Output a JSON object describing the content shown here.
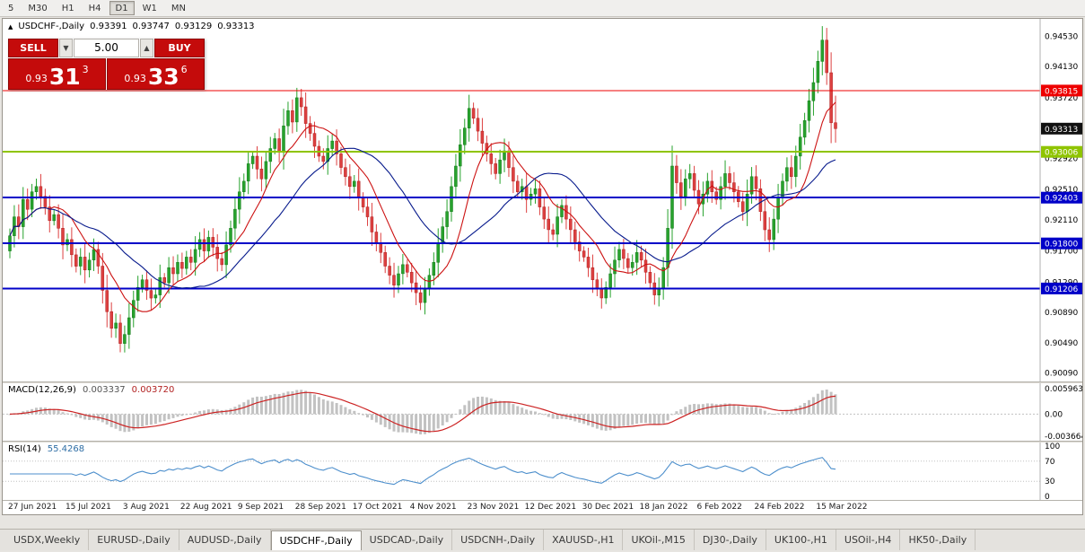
{
  "toolbar": {
    "timeframes": [
      {
        "label": "5",
        "active": false
      },
      {
        "label": "M30",
        "active": false
      },
      {
        "label": "H1",
        "active": false
      },
      {
        "label": "H4",
        "active": false
      },
      {
        "label": "D1",
        "active": true
      },
      {
        "label": "W1",
        "active": false
      },
      {
        "label": "MN",
        "active": false
      }
    ]
  },
  "chart": {
    "symbol_header": {
      "arrow": "▲",
      "title": "USDCHF-,Daily",
      "o": "0.93391",
      "h": "0.93747",
      "l": "0.93129",
      "c": "0.93313"
    },
    "trade_panel": {
      "sell_label": "SELL",
      "buy_label": "BUY",
      "volume": "5.00",
      "sell_price": {
        "prefix": "0.93",
        "big": "31",
        "sup": "3"
      },
      "buy_price": {
        "prefix": "0.93",
        "big": "33",
        "sup": "6"
      }
    },
    "price_axis": {
      "ticks": [
        "0.94530",
        "0.94130",
        "0.93720",
        "0.93310",
        "0.92920",
        "0.92510",
        "0.92110",
        "0.91700",
        "0.91290",
        "0.90890",
        "0.90490",
        "0.90090"
      ],
      "badges": [
        {
          "value": "0.93815",
          "color": "#ee0000"
        },
        {
          "value": "0.93313",
          "color": "#111111"
        },
        {
          "value": "0.93006",
          "color": "#8fc400"
        },
        {
          "value": "0.92403",
          "color": "#0000c8"
        },
        {
          "value": "0.91800",
          "color": "#0000c8"
        },
        {
          "value": "0.91206",
          "color": "#0000c8"
        }
      ]
    },
    "hlines": [
      {
        "price": 0.93815,
        "color": "#ee0000",
        "width": 1
      },
      {
        "price": 0.93006,
        "color": "#8fc400",
        "width": 2
      },
      {
        "price": 0.92403,
        "color": "#0000c8",
        "width": 2
      },
      {
        "price": 0.918,
        "color": "#0000c8",
        "width": 2
      },
      {
        "price": 0.91206,
        "color": "#0000c8",
        "width": 2
      }
    ],
    "current_price": "0.93313"
  },
  "macd": {
    "header_name": "MACD(12,26,9)",
    "value_main": "0.003337",
    "value_signal": "0.003720",
    "axis": [
      "0.005963",
      "0.00",
      "-0.003664"
    ]
  },
  "rsi": {
    "header_name": "RSI(14)",
    "value": "55.4268",
    "axis": [
      "100",
      "70",
      "30",
      "0"
    ],
    "levels": [
      70,
      30
    ]
  },
  "dates": {
    "labels": [
      "27 Jun 2021",
      "15 Jul 2021",
      "3 Aug 2021",
      "22 Aug 2021",
      "9 Sep 2021",
      "28 Sep 2021",
      "17 Oct 2021",
      "4 Nov 2021",
      "23 Nov 2021",
      "12 Dec 2021",
      "30 Dec 2021",
      "18 Jan 2022",
      "6 Feb 2022",
      "24 Feb 2022",
      "15 Mar 2022"
    ],
    "indices": [
      0,
      13,
      26,
      39,
      52,
      65,
      78,
      91,
      104,
      117,
      130,
      143,
      156,
      169,
      183
    ]
  },
  "tabs": [
    {
      "label": "USDX,Weekly",
      "active": false
    },
    {
      "label": "EURUSD-,Daily",
      "active": false
    },
    {
      "label": "AUDUSD-,Daily",
      "active": false
    },
    {
      "label": "USDCHF-,Daily",
      "active": true
    },
    {
      "label": "USDCAD-,Daily",
      "active": false
    },
    {
      "label": "USDCNH-,Daily",
      "active": false
    },
    {
      "label": "XAUUSD-,H1",
      "active": false
    },
    {
      "label": "UKOil-,M15",
      "active": false
    },
    {
      "label": "DJ30-,Daily",
      "active": false
    },
    {
      "label": "UK100-,H1",
      "active": false
    },
    {
      "label": "USOil-,H4",
      "active": false
    },
    {
      "label": "HK50-,Daily",
      "active": false
    }
  ],
  "colors": {
    "up": "#27a22d",
    "up_border": "#157a1b",
    "down": "#dd4040",
    "down_border": "#b02020",
    "ma_fast": "#cc1111",
    "ma_slow": "#071a8c",
    "macd_hist": "#c2c2c2",
    "macd_signal": "#cc2222",
    "rsi_line": "#4d8fcc",
    "level_dotted": "#c0c0c0",
    "axis_sep": "#b0b0b0"
  },
  "chart_data": {
    "type": "candlestick",
    "symbol": "USDCHF-",
    "timeframe": "Daily",
    "title": "USDCHF-,Daily",
    "price_range": [
      0.8998,
      0.9476
    ],
    "first_open": 0.917,
    "closes": [
      0.919,
      0.9215,
      0.9202,
      0.9238,
      0.9225,
      0.9248,
      0.9255,
      0.9242,
      0.9228,
      0.921,
      0.9218,
      0.92,
      0.9178,
      0.9185,
      0.9165,
      0.915,
      0.9162,
      0.9145,
      0.9158,
      0.9172,
      0.915,
      0.9118,
      0.909,
      0.9068,
      0.9075,
      0.9048,
      0.906,
      0.9082,
      0.9105,
      0.9122,
      0.9132,
      0.9118,
      0.9108,
      0.9112,
      0.9135,
      0.9128,
      0.9148,
      0.914,
      0.9155,
      0.9147,
      0.9162,
      0.9155,
      0.9172,
      0.9185,
      0.917,
      0.9188,
      0.9175,
      0.916,
      0.9152,
      0.9178,
      0.92,
      0.9225,
      0.9248,
      0.9262,
      0.9285,
      0.9295,
      0.9278,
      0.9265,
      0.9288,
      0.9305,
      0.9318,
      0.93,
      0.9335,
      0.9355,
      0.934,
      0.9372,
      0.936,
      0.9338,
      0.9325,
      0.9308,
      0.9295,
      0.9288,
      0.9305,
      0.9315,
      0.9298,
      0.928,
      0.9268,
      0.9255,
      0.9262,
      0.924,
      0.9228,
      0.9215,
      0.9195,
      0.918,
      0.9168,
      0.915,
      0.9138,
      0.9125,
      0.914,
      0.9152,
      0.9142,
      0.9128,
      0.9115,
      0.9102,
      0.912,
      0.9138,
      0.9155,
      0.918,
      0.9202,
      0.9222,
      0.9255,
      0.9282,
      0.931,
      0.9332,
      0.9358,
      0.9345,
      0.9328,
      0.9312,
      0.9298,
      0.9285,
      0.9272,
      0.929,
      0.9302,
      0.928,
      0.9262,
      0.9248,
      0.9255,
      0.9238,
      0.9245,
      0.9252,
      0.9228,
      0.9212,
      0.9198,
      0.9192,
      0.9215,
      0.923,
      0.9212,
      0.9198,
      0.9182,
      0.917,
      0.9162,
      0.9148,
      0.9132,
      0.912,
      0.9108,
      0.9122,
      0.914,
      0.9158,
      0.9172,
      0.916,
      0.9148,
      0.9155,
      0.9168,
      0.9158,
      0.9142,
      0.9128,
      0.9112,
      0.912,
      0.9148,
      0.92,
      0.9282,
      0.926,
      0.9242,
      0.9265,
      0.9272,
      0.925,
      0.9232,
      0.9245,
      0.9262,
      0.9248,
      0.9238,
      0.9255,
      0.9272,
      0.926,
      0.9248,
      0.9235,
      0.9222,
      0.9245,
      0.9268,
      0.9252,
      0.9222,
      0.9198,
      0.9185,
      0.9212,
      0.924,
      0.9262,
      0.928,
      0.9268,
      0.9295,
      0.932,
      0.9342,
      0.9368,
      0.9392,
      0.942,
      0.9448,
      0.9405,
      0.9339,
      0.93313
    ],
    "current_bar": {
      "o": 0.93391,
      "h": 0.93747,
      "l": 0.93129,
      "c": 0.93313
    },
    "ma_fast_period": 10,
    "ma_slow_period": 25,
    "macd_params": [
      12,
      26,
      9
    ],
    "rsi_period": 14
  }
}
